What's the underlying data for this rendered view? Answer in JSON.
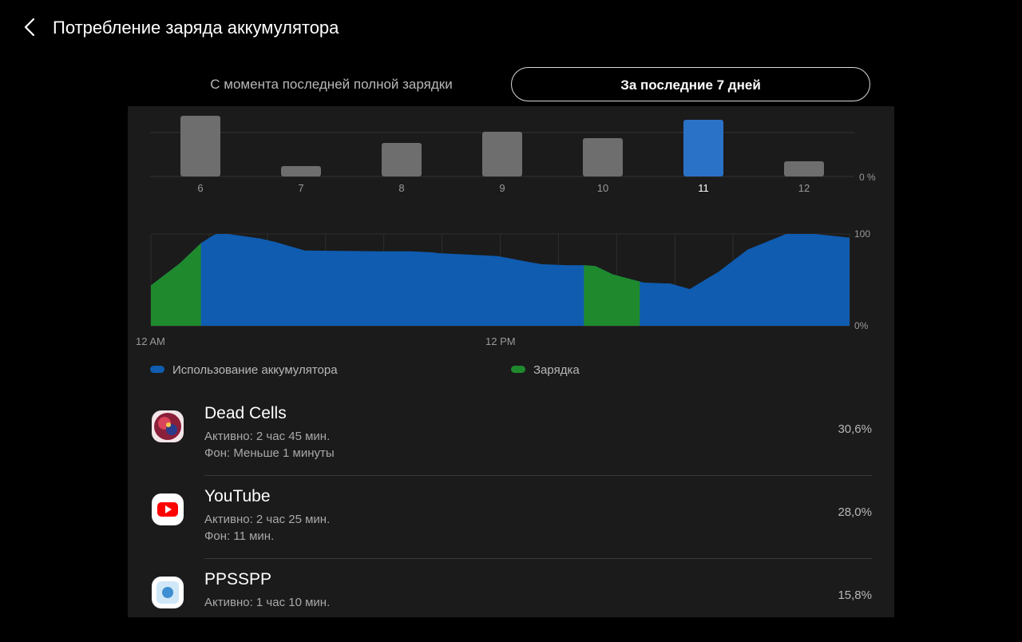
{
  "header": {
    "title": "Потребление заряда аккумулятора",
    "back_icon": "chevron-left-icon"
  },
  "tabs": [
    {
      "label": "С момента последней полной зарядки",
      "selected": false
    },
    {
      "label": "За последние 7 дней",
      "selected": true
    }
  ],
  "colors": {
    "usage": "#0f5cb0",
    "charging": "#1f8a2d",
    "selected_bar": "#2a72c8",
    "bar": "#6e6e6e"
  },
  "chart_data": [
    {
      "type": "bar",
      "categories": [
        "6",
        "7",
        "8",
        "9",
        "10",
        "11",
        "12"
      ],
      "values": [
        76,
        13,
        42,
        56,
        48,
        71,
        19
      ],
      "selected_category": "11",
      "ylabel_right": "0 %"
    },
    {
      "type": "area",
      "x_labels": [
        "12 AM",
        "12 PM"
      ],
      "ylim": [
        0,
        100
      ],
      "y_tick_labels": [
        "100",
        "0%"
      ],
      "series": [
        {
          "name": "Использование аккумулятора"
        },
        {
          "name": "Зарядка"
        }
      ],
      "x": [
        0,
        1.5,
        2.6,
        3.2,
        3.4,
        4,
        5,
        5.7,
        6.5,
        8,
        12,
        13.5,
        14.6,
        15,
        18,
        19.5,
        20.3,
        21.6,
        22.5,
        23.1,
        24,
        25.6,
        27,
        28,
        29.5,
        31,
        33,
        34.5,
        36.3
      ],
      "y": [
        44,
        68,
        90,
        98,
        100,
        100,
        97,
        95,
        91,
        82,
        81,
        81,
        80,
        79,
        76,
        70,
        67,
        66,
        66,
        65,
        56,
        47,
        46,
        40,
        59,
        83,
        100,
        100,
        96
      ],
      "charging_x_ranges": [
        [
          0,
          2.6
        ],
        [
          22.5,
          25.4
        ]
      ]
    }
  ],
  "legend": [
    {
      "label": "Использование аккумулятора",
      "color": "#0f5cb0"
    },
    {
      "label": "Зарядка",
      "color": "#1f8a2d"
    }
  ],
  "apps": [
    {
      "name": "Dead Cells",
      "active": "Активно: 2 час 45 мин.",
      "background": "Фон: Меньше 1 минуты",
      "percent": "30,6%",
      "icon": "dead-cells-icon"
    },
    {
      "name": "YouTube",
      "active": "Активно: 2 час 25 мин.",
      "background": "Фон: 11 мин.",
      "percent": "28,0%",
      "icon": "youtube-icon"
    },
    {
      "name": "PPSSPP",
      "active": "Активно: 1 час 10 мин.",
      "background": "",
      "percent": "15,8%",
      "icon": "ppsspp-icon"
    }
  ]
}
